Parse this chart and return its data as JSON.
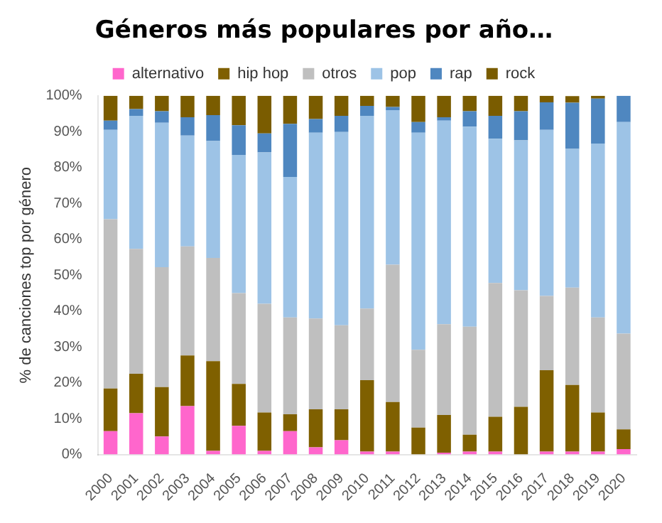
{
  "chart_data": {
    "type": "bar",
    "title": "Géneros más populares por año…",
    "ylabel": "% de canciones top por género",
    "stacked": true,
    "legend": "top",
    "grid": false,
    "categories": [
      "2000",
      "2001",
      "2002",
      "2003",
      "2004",
      "2005",
      "2006",
      "2007",
      "2008",
      "2009",
      "2010",
      "2011",
      "2012",
      "2013",
      "2014",
      "2015",
      "2016",
      "2017",
      "2018",
      "2019",
      "2020"
    ],
    "ylim": [
      0,
      100
    ],
    "yticks": [
      {
        "value": 0,
        "label": "0%"
      },
      {
        "value": 10,
        "label": "10%"
      },
      {
        "value": 20,
        "label": "20%"
      },
      {
        "value": 30,
        "label": "30%"
      },
      {
        "value": 40,
        "label": "40%"
      },
      {
        "value": 50,
        "label": "50%"
      },
      {
        "value": 60,
        "label": "60%"
      },
      {
        "value": 70,
        "label": "70%"
      },
      {
        "value": 80,
        "label": "80%"
      },
      {
        "value": 90,
        "label": "90%"
      },
      {
        "value": 100,
        "label": "100%"
      }
    ],
    "series": [
      {
        "name": "alternativo",
        "color": "#ff66cc",
        "values": [
          6.5,
          11.5,
          5,
          13.5,
          1,
          8,
          1,
          6.5,
          2,
          4,
          0.8,
          0.8,
          0,
          0.5,
          0.8,
          0.8,
          0,
          0.8,
          0.8,
          0.8,
          1.5
        ]
      },
      {
        "name": "hip hop",
        "color": "#7f6000",
        "values": [
          11.9,
          11,
          13.8,
          14.1,
          25,
          11.7,
          10.7,
          4.7,
          10.6,
          8.6,
          19.9,
          13.8,
          7.5,
          10.5,
          4.7,
          9.7,
          13.3,
          22.7,
          18.6,
          10.9,
          5.5
        ]
      },
      {
        "name": "otros",
        "color": "#bfbfbf",
        "values": [
          47.2,
          34.8,
          33.4,
          30.4,
          28.8,
          25.3,
          30.3,
          27,
          25.3,
          23.4,
          20,
          38.3,
          21.7,
          25.3,
          30.1,
          37.3,
          32.5,
          20.7,
          27.1,
          26.5,
          26.7
        ]
      },
      {
        "name": "pop",
        "color": "#9dc3e6",
        "values": [
          24.9,
          37.1,
          40.3,
          30.9,
          32.6,
          38.5,
          42.2,
          39.2,
          51.8,
          53.9,
          53.7,
          43.1,
          60.5,
          56.8,
          55.8,
          40.2,
          41.8,
          46.3,
          38.7,
          48.5,
          59
        ]
      },
      {
        "name": "rap",
        "color": "#4f87c0",
        "values": [
          2.6,
          1.9,
          3.2,
          5.1,
          7.2,
          8.3,
          5.3,
          14.8,
          3.8,
          4.5,
          2.8,
          0.9,
          3,
          0.9,
          4.3,
          6.4,
          8.1,
          7.7,
          12.9,
          12.5,
          7.3
        ]
      },
      {
        "name": "rock",
        "color": "#7a5c00",
        "values": [
          6.9,
          3.7,
          4.3,
          6,
          5.4,
          8.2,
          10.5,
          7.8,
          6.5,
          5.6,
          2.8,
          3.1,
          7.3,
          6,
          4.3,
          5.6,
          4.3,
          1.8,
          1.8,
          0.8,
          0
        ]
      }
    ]
  }
}
